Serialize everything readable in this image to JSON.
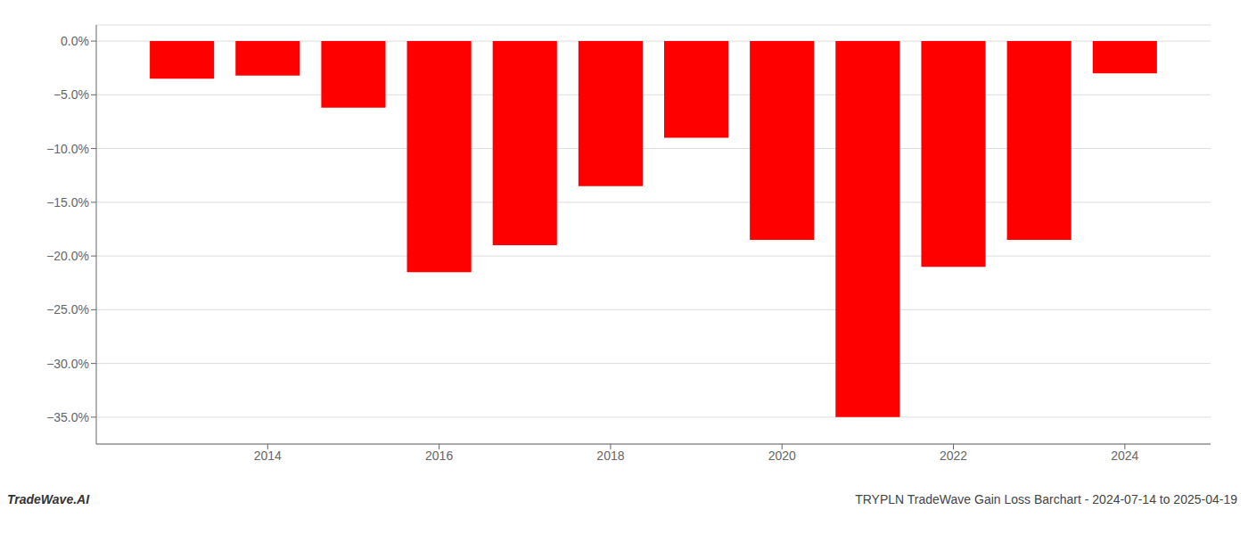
{
  "chart_data": {
    "type": "bar",
    "x": [
      2013,
      2014,
      2015,
      2016,
      2017,
      2018,
      2019,
      2020,
      2021,
      2022,
      2023,
      2024
    ],
    "values": [
      -3.5,
      -3.2,
      -6.2,
      -21.5,
      -19.0,
      -13.5,
      -9.0,
      -18.5,
      -35.0,
      -21.0,
      -18.5,
      -3.0
    ],
    "color": "#ff0000",
    "xlim": [
      2012,
      2025
    ],
    "xticks": [
      2014,
      2016,
      2018,
      2020,
      2022,
      2024
    ],
    "ylim": [
      -37.5,
      1.5
    ],
    "yticks": [
      {
        "value": 0.0,
        "label": "0.0%"
      },
      {
        "value": -5.0,
        "label": "−5.0%"
      },
      {
        "value": -10.0,
        "label": "−10.0%"
      },
      {
        "value": -15.0,
        "label": "−15.0%"
      },
      {
        "value": -20.0,
        "label": "−20.0%"
      },
      {
        "value": -25.0,
        "label": "−25.0%"
      },
      {
        "value": -30.0,
        "label": "−30.0%"
      },
      {
        "value": -35.0,
        "label": "−35.0%"
      }
    ],
    "grid": true,
    "annotations": [
      "TradeWave.AI",
      "TRYPLN TradeWave Gain Loss Barchart - 2024-07-14 to 2025-04-19"
    ]
  }
}
